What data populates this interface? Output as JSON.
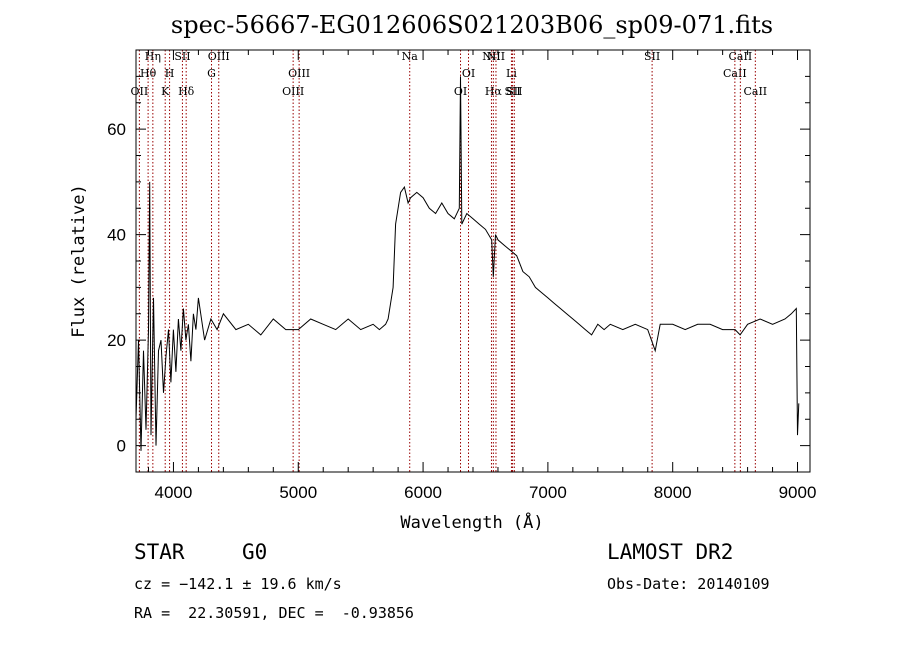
{
  "chart_data": {
    "type": "line",
    "title": "spec-56667-EG012606S021203B06_sp09-071.fits",
    "xlabel": "Wavelength (Å)",
    "ylabel": "Flux (relative)",
    "xlim": [
      3700,
      9100
    ],
    "ylim": [
      -5,
      75
    ],
    "xticks": [
      4000,
      5000,
      6000,
      7000,
      8000,
      9000
    ],
    "yticks": [
      0,
      20,
      40,
      60
    ],
    "grid": false,
    "series": [
      {
        "x": [
          3700,
          3720,
          3740,
          3760,
          3780,
          3800,
          3810,
          3820,
          3840,
          3860,
          3880,
          3900,
          3920,
          3940,
          3960,
          3980,
          4000,
          4020,
          4040,
          4060,
          4080,
          4100,
          4120,
          4140,
          4160,
          4180,
          4200,
          4250,
          4300,
          4350,
          4400,
          4500,
          4600,
          4700,
          4800,
          4900,
          5000,
          5100,
          5200,
          5300,
          5400,
          5500,
          5600,
          5650,
          5700,
          5720,
          5740,
          5760,
          5780,
          5800,
          5820,
          5850,
          5880,
          5900,
          5950,
          6000,
          6050,
          6100,
          6150,
          6200,
          6250,
          6290,
          6300,
          6310,
          6350,
          6400,
          6450,
          6500,
          6550,
          6563,
          6580,
          6600,
          6650,
          6700,
          6750,
          6800,
          6850,
          6900,
          6950,
          7000,
          7050,
          7100,
          7150,
          7200,
          7250,
          7300,
          7350,
          7400,
          7450,
          7500,
          7600,
          7700,
          7800,
          7860,
          7900,
          8000,
          8100,
          8200,
          8300,
          8400,
          8500,
          8540,
          8600,
          8700,
          8800,
          8900,
          8950,
          8990,
          9000,
          9010
        ],
        "y": [
          5,
          20,
          -1,
          18,
          3,
          22,
          50,
          2,
          28,
          0,
          18,
          20,
          10,
          17,
          22,
          12,
          22,
          14,
          24,
          18,
          26,
          20,
          23,
          16,
          25,
          22,
          28,
          20,
          24,
          22,
          25,
          22,
          23,
          21,
          24,
          22,
          22,
          24,
          23,
          22,
          24,
          22,
          23,
          22,
          23,
          24,
          27,
          30,
          42,
          45,
          48,
          49,
          46,
          47,
          48,
          47,
          45,
          44,
          46,
          44,
          43,
          45,
          70,
          42,
          44,
          43,
          42,
          41,
          39,
          32,
          40,
          39,
          38,
          37,
          36,
          33,
          32,
          30,
          29,
          28,
          27,
          26,
          25,
          24,
          23,
          22,
          21,
          23,
          22,
          23,
          22,
          23,
          22,
          18,
          23,
          23,
          22,
          23,
          23,
          22,
          22,
          21,
          23,
          24,
          23,
          24,
          25,
          26,
          2,
          8
        ]
      }
    ],
    "line_markers": [
      {
        "label": "OII",
        "x": 3727,
        "row": 3
      },
      {
        "label": "Hθ",
        "x": 3797,
        "row": 2
      },
      {
        "label": "Hη",
        "x": 3835,
        "row": 1
      },
      {
        "label": "K",
        "x": 3934,
        "row": 3
      },
      {
        "label": "H",
        "x": 3969,
        "row": 2
      },
      {
        "label": "SII",
        "x": 4072,
        "row": 1
      },
      {
        "label": "Hδ",
        "x": 4102,
        "row": 3
      },
      {
        "label": "G",
        "x": 4305,
        "row": 2
      },
      {
        "label": "OIII",
        "x": 4363,
        "row": 1
      },
      {
        "label": "OIII",
        "x": 4959,
        "row": 3
      },
      {
        "label": "OIII",
        "x": 5007,
        "row": 2
      },
      {
        "label": "Na",
        "x": 5893,
        "row": 1
      },
      {
        "label": "OI",
        "x": 6300,
        "row": 3
      },
      {
        "label": "OI",
        "x": 6364,
        "row": 2
      },
      {
        "label": "NII",
        "x": 6548,
        "row": 1
      },
      {
        "label": "Hα",
        "x": 6563,
        "row": 3
      },
      {
        "label": "NII",
        "x": 6584,
        "row": 1
      },
      {
        "label": "SII",
        "x": 6717,
        "row": 3
      },
      {
        "label": "Li",
        "x": 6708,
        "row": 2
      },
      {
        "label": "SII",
        "x": 6731,
        "row": 3
      },
      {
        "label": "SII",
        "x": 7835,
        "row": 1
      },
      {
        "label": "CaII",
        "x": 8498,
        "row": 2
      },
      {
        "label": "CaII",
        "x": 8542,
        "row": 1
      },
      {
        "label": "CaII",
        "x": 8662,
        "row": 3
      }
    ]
  },
  "info": {
    "object_class": "STAR",
    "subclass": "G0",
    "survey": "LAMOST DR2",
    "cz": "cz = −142.1 ± 19.6 km/s",
    "obs_date": "Obs-Date: 20140109",
    "coords": "RA =  22.30591, DEC =  -0.93856"
  },
  "colors": {
    "spectrum": "#000000",
    "marker": "#990000"
  }
}
